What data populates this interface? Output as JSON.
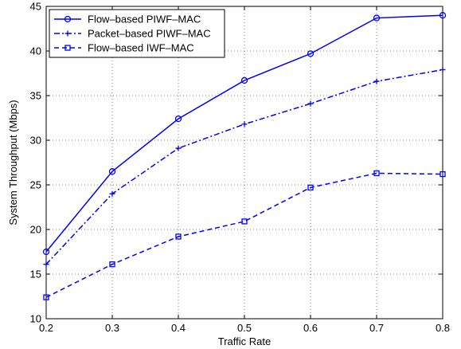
{
  "chart_data": {
    "type": "line",
    "title": "",
    "xlabel": "Traffic Rate",
    "ylabel": "System Throughput (Mbps)",
    "xlim": [
      0.2,
      0.8
    ],
    "ylim": [
      10,
      45
    ],
    "x_ticks": [
      "0.2",
      "0.3",
      "0.4",
      "0.5",
      "0.6",
      "0.7",
      "0.8"
    ],
    "y_ticks": [
      "10",
      "15",
      "20",
      "25",
      "30",
      "35",
      "40",
      "45"
    ],
    "grid": true,
    "legend_position": "top-left",
    "x": [
      0.2,
      0.3,
      0.4,
      0.5,
      0.6,
      0.7,
      0.8
    ],
    "series": [
      {
        "name": "Flow–based PIWF–MAC",
        "values": [
          17.5,
          26.5,
          32.4,
          36.7,
          39.7,
          43.7,
          44.0
        ],
        "color": "#0000ff",
        "line_style": "solid",
        "marker": "circle"
      },
      {
        "name": "Packet–based PIWF–MAC",
        "values": [
          16.1,
          24.0,
          29.1,
          31.8,
          34.1,
          36.6,
          37.9
        ],
        "color": "#0000ff",
        "line_style": "dash-dot",
        "marker": "plus"
      },
      {
        "name": "Flow–based IWF–MAC",
        "values": [
          12.4,
          16.1,
          19.2,
          20.9,
          24.7,
          26.3,
          26.2
        ],
        "color": "#0000ff",
        "line_style": "dashed",
        "marker": "square"
      }
    ]
  }
}
